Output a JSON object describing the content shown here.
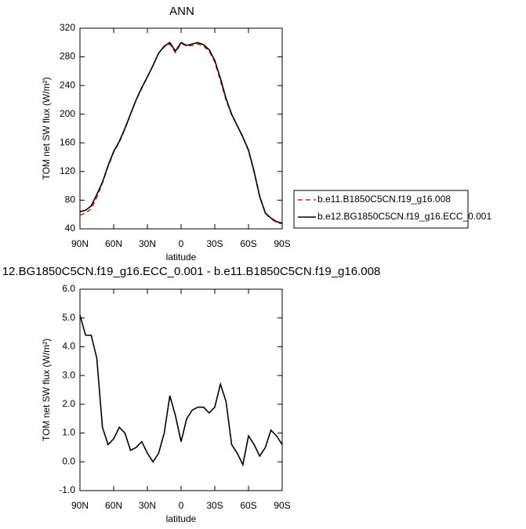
{
  "chart_data": [
    {
      "type": "line",
      "title": "ANN",
      "xlabel": "latitude",
      "ylabel": "TOM net SW flux (W/m²)",
      "x": [
        90,
        85,
        80,
        75,
        70,
        65,
        60,
        55,
        50,
        45,
        40,
        35,
        30,
        25,
        20,
        15,
        10,
        5,
        0,
        -5,
        -10,
        -15,
        -20,
        -25,
        -30,
        -35,
        -40,
        -45,
        -50,
        -55,
        -60,
        -65,
        -70,
        -75,
        -80,
        -85,
        -90
      ],
      "series": [
        {
          "name": "b.e11.B1850C5CN.f19_g16.008",
          "color": "#e02020",
          "style": "dashed",
          "values": [
            59,
            62,
            68,
            84,
            104,
            127,
            147,
            161,
            179,
            200,
            220,
            236,
            252,
            268,
            285,
            294,
            298,
            286,
            299,
            295,
            296,
            298,
            295,
            288,
            273,
            247,
            220,
            199,
            184,
            168,
            149,
            119,
            85,
            62,
            54,
            49,
            47
          ]
        },
        {
          "name": "b.e12.BG1850C5CN.f19_g16.ECC_0.001",
          "color": "#000000",
          "style": "solid",
          "values": [
            64,
            66,
            72,
            88,
            105,
            128,
            148,
            162,
            180,
            200,
            220,
            237,
            252,
            268,
            285,
            295,
            300,
            288,
            300,
            296,
            298,
            300,
            297,
            290,
            275,
            250,
            222,
            200,
            184,
            168,
            150,
            120,
            85,
            62,
            55,
            50,
            48
          ]
        }
      ],
      "xlim": [
        90,
        -90
      ],
      "xticks": [
        {
          "value": 90,
          "label": "90N"
        },
        {
          "value": 60,
          "label": "60N"
        },
        {
          "value": 30,
          "label": "30N"
        },
        0,
        {
          "value": -30,
          "label": "30S"
        },
        {
          "value": -60,
          "label": "60S"
        },
        {
          "value": -90,
          "label": "90S"
        }
      ],
      "ylim": [
        40,
        320
      ],
      "yticks": [
        40,
        80,
        120,
        160,
        200,
        240,
        280,
        320
      ],
      "legend": "right"
    },
    {
      "type": "line",
      "title": "12.BG1850C5CN.f19_g16.ECC_0.001 - b.e11.B1850C5CN.f19_g16.008",
      "xlabel": "latitude",
      "ylabel": "TOM net SW flux (W/m²)",
      "x": [
        90,
        85,
        80,
        75,
        70,
        65,
        60,
        55,
        50,
        45,
        40,
        35,
        30,
        25,
        20,
        15,
        10,
        5,
        0,
        -5,
        -10,
        -15,
        -20,
        -25,
        -30,
        -35,
        -40,
        -45,
        -50,
        -55,
        -60,
        -65,
        -70,
        -75,
        -80,
        -85,
        -90
      ],
      "values": [
        5.1,
        4.4,
        4.4,
        3.6,
        1.2,
        0.6,
        0.8,
        1.2,
        1.0,
        0.4,
        0.5,
        0.7,
        0.3,
        0.0,
        0.3,
        1.0,
        2.3,
        1.6,
        0.7,
        1.5,
        1.8,
        1.9,
        1.9,
        1.7,
        1.9,
        2.7,
        2.1,
        0.6,
        0.3,
        -0.1,
        0.9,
        0.6,
        0.2,
        0.5,
        1.1,
        0.9,
        0.6
      ],
      "color": "#000000",
      "xlim": [
        90,
        -90
      ],
      "xticks": [
        {
          "value": 90,
          "label": "90N"
        },
        {
          "value": 60,
          "label": "60N"
        },
        {
          "value": 30,
          "label": "30N"
        },
        0,
        {
          "value": -30,
          "label": "30S"
        },
        {
          "value": -60,
          "label": "60S"
        },
        {
          "value": -90,
          "label": "90S"
        }
      ],
      "ylim": [
        -1,
        6
      ],
      "yticks": [
        {
          "value": -1,
          "label": "-1.0"
        },
        {
          "value": 0,
          "label": "0.0"
        },
        {
          "value": 1,
          "label": "1.0"
        },
        {
          "value": 2,
          "label": "2.0"
        },
        {
          "value": 3,
          "label": "3.0"
        },
        {
          "value": 4,
          "label": "4.0"
        },
        {
          "value": 5,
          "label": "5.0"
        },
        {
          "value": 6,
          "label": "6.0"
        }
      ]
    }
  ]
}
